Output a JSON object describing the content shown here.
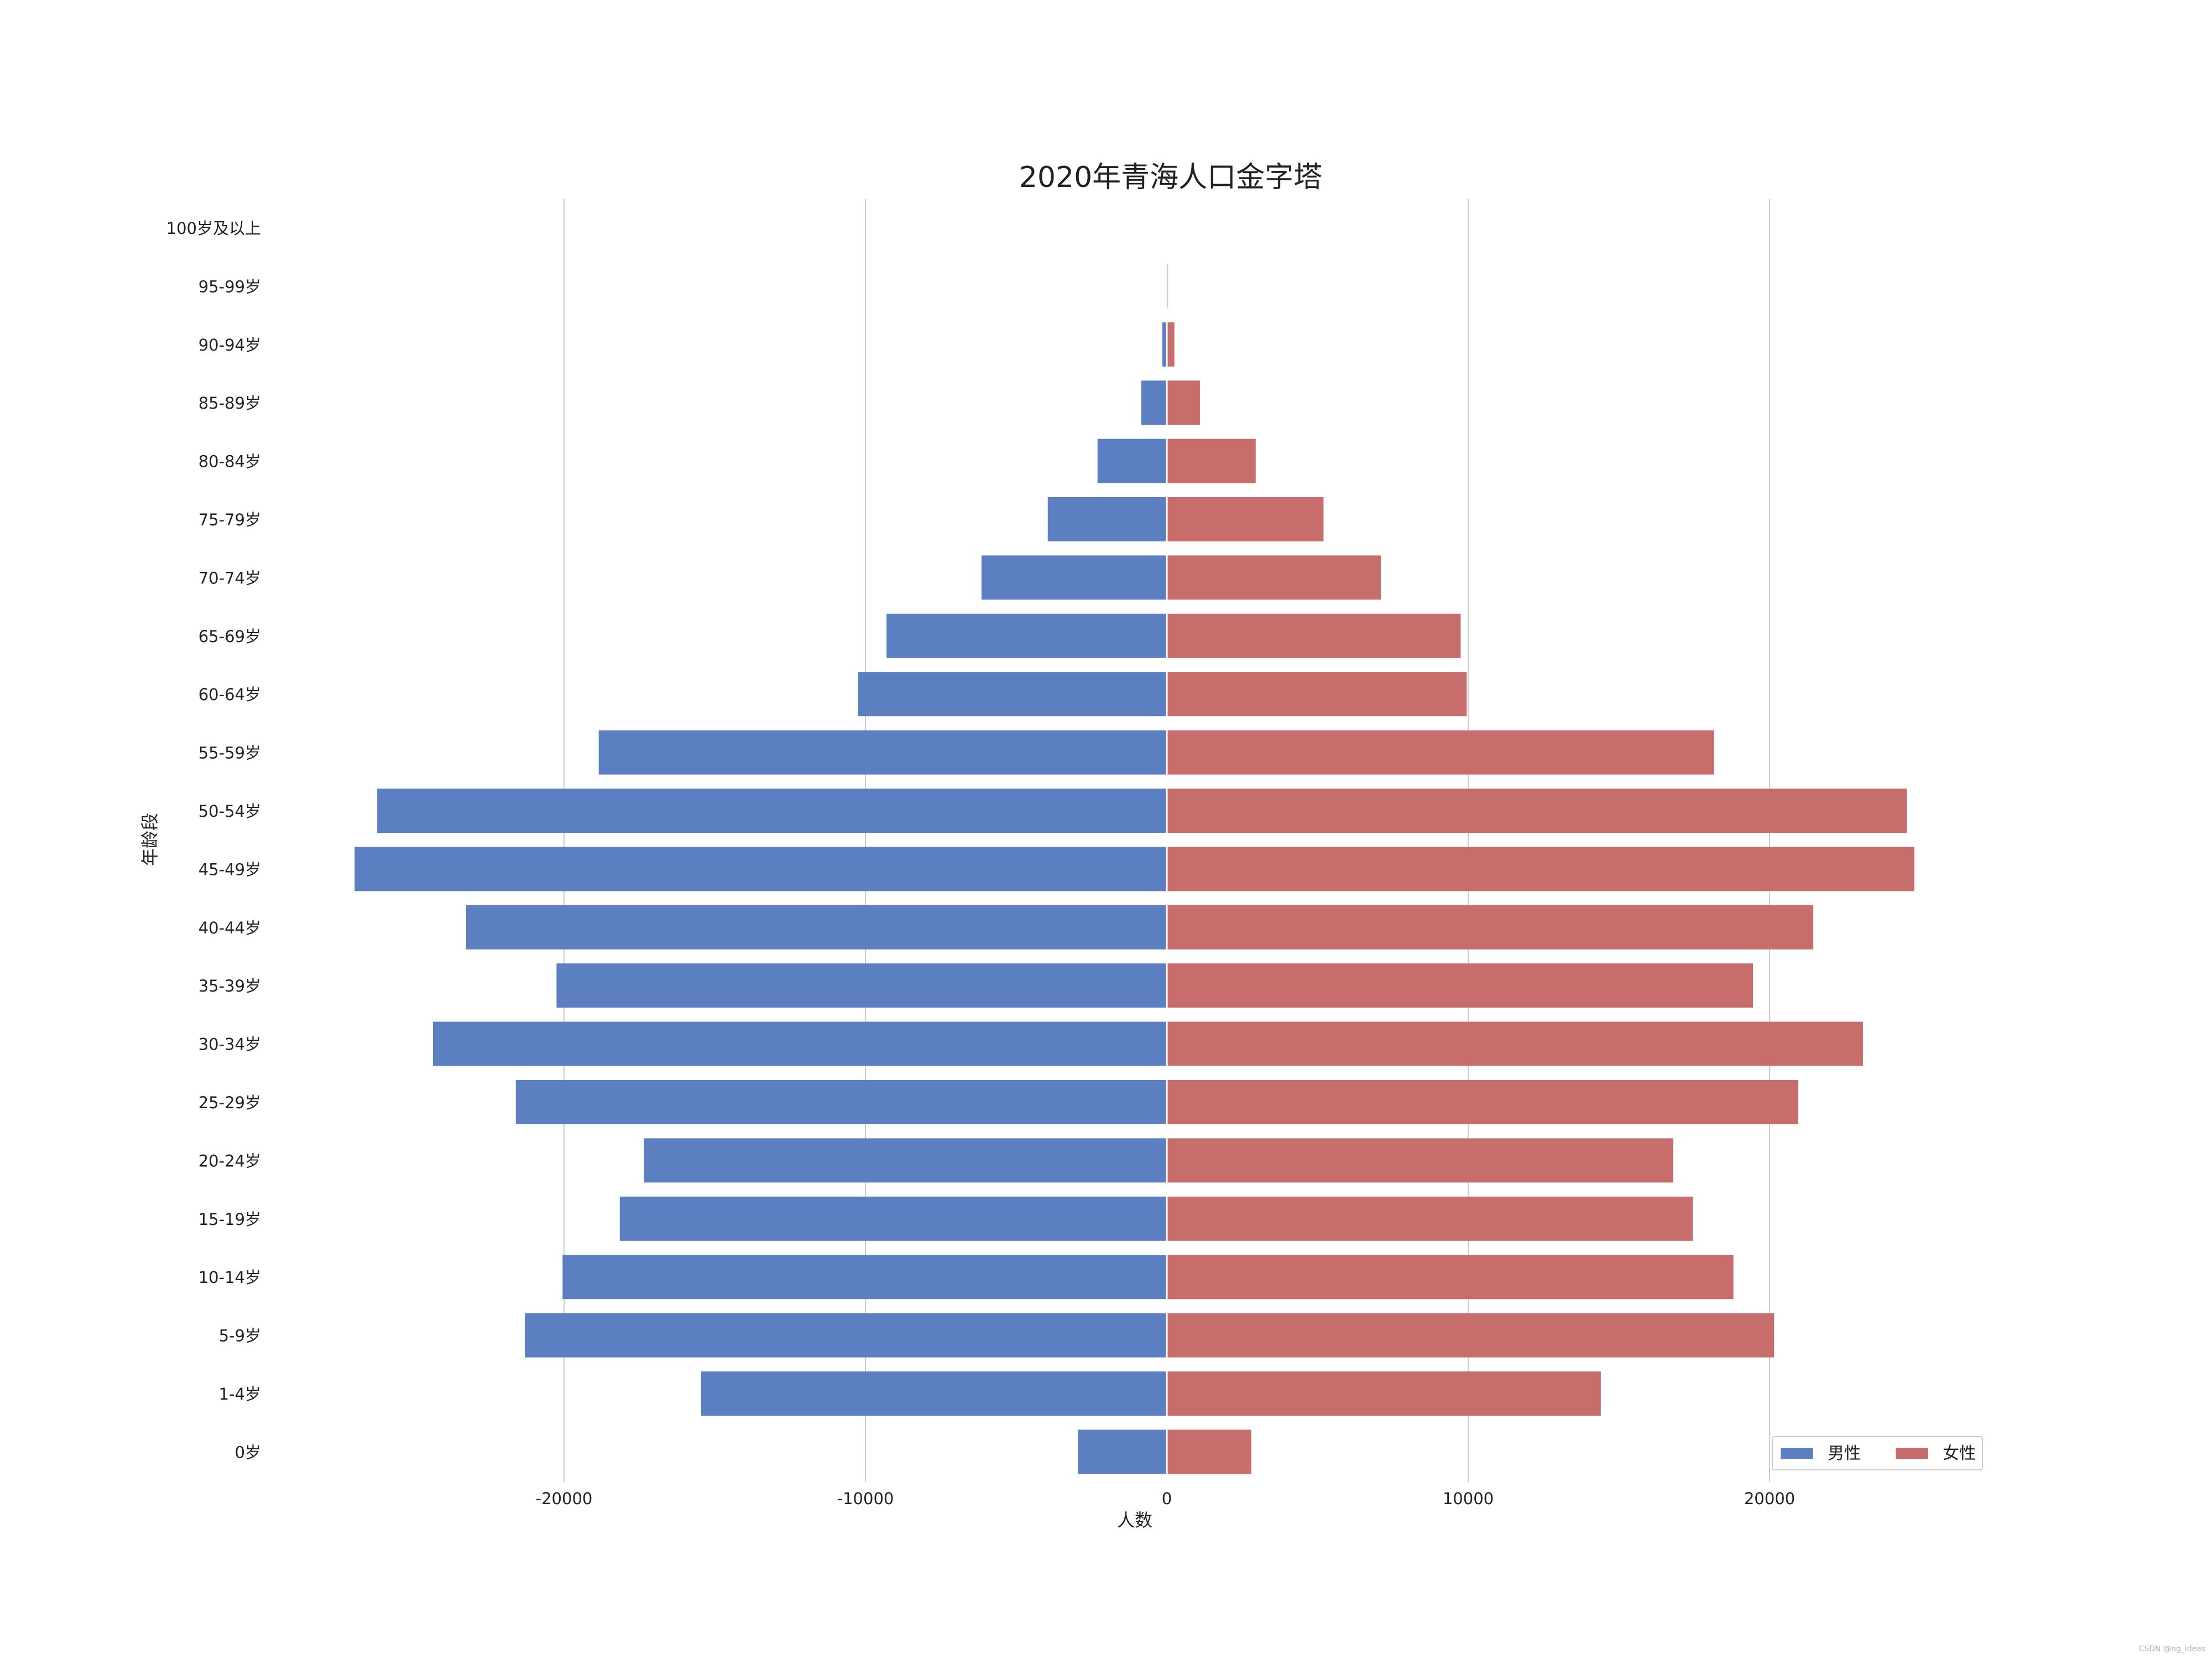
{
  "chart_data": {
    "type": "bar",
    "title": "2020年青海人口金字塔",
    "xlabel": "人数",
    "ylabel": "年龄段",
    "xlim": [
      -28000,
      27000
    ],
    "xticks": [
      -20000,
      -10000,
      0,
      10000,
      20000
    ],
    "xtick_labels": [
      "-20000",
      "-10000",
      "0",
      "10000",
      "20000"
    ],
    "grid": "vertical",
    "legend_position": "bottom-right",
    "categories": [
      "100岁及以上",
      "95-99岁",
      "90-94岁",
      "85-89岁",
      "80-84岁",
      "75-79岁",
      "70-74岁",
      "65-69岁",
      "60-64岁",
      "55-59岁",
      "50-54岁",
      "45-49岁",
      "40-44岁",
      "35-39岁",
      "30-34岁",
      "25-29岁",
      "20-24岁",
      "15-19岁",
      "10-14岁",
      "5-9岁",
      "1-4岁",
      "0岁"
    ],
    "series": [
      {
        "name": "男性",
        "color": "#5b7fc0",
        "values": [
          -5,
          -30,
          -150,
          -850,
          -2300,
          -3950,
          -6150,
          -9300,
          -10250,
          -18850,
          -26200,
          -26950,
          -23250,
          -20250,
          -24350,
          -21600,
          -17350,
          -18150,
          -20050,
          -21300,
          -15450,
          -2950
        ]
      },
      {
        "name": "女性",
        "color": "#c76d6b",
        "values": [
          5,
          40,
          250,
          1100,
          2950,
          5200,
          7100,
          9750,
          9950,
          18150,
          24550,
          24800,
          21450,
          19450,
          23100,
          20950,
          16800,
          17450,
          18800,
          20150,
          14400,
          2800
        ]
      }
    ]
  },
  "watermark": "CSDN @ng_ideas"
}
